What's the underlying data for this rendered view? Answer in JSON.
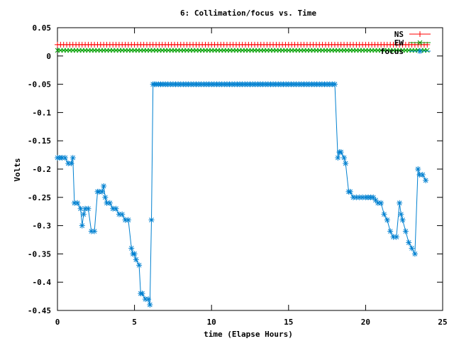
{
  "chart_data": {
    "type": "line",
    "title": "6: Collimation/focus vs. Time",
    "xlabel": "time (Elapse Hours)",
    "ylabel": "Volts",
    "xlim": [
      0,
      25
    ],
    "ylim": [
      -0.45,
      0.05
    ],
    "xticks": [
      "0",
      "5",
      "10",
      "15",
      "20",
      "25"
    ],
    "yticks": [
      "0.05",
      "0",
      "-0.05",
      "-0.1",
      "-0.15",
      "-0.2",
      "-0.25",
      "-0.3",
      "-0.35",
      "-0.4",
      "-0.45"
    ],
    "legend_position": "top-right",
    "grid": false,
    "series": [
      {
        "name": "NS",
        "color": "#ff0000",
        "marker": "plus",
        "x": [
          0,
          24
        ],
        "y": [
          0.02,
          0.02
        ]
      },
      {
        "name": "EW",
        "color": "#00a000",
        "marker": "x",
        "x": [
          0,
          24
        ],
        "y": [
          0.01,
          0.01
        ]
      },
      {
        "name": "focus",
        "color": "#0080d0",
        "marker": "star",
        "x": [
          0.0,
          0.3,
          0.5,
          0.7,
          0.9,
          1.0,
          1.1,
          1.3,
          1.5,
          1.6,
          1.7,
          1.8,
          2.0,
          2.2,
          2.4,
          2.6,
          2.7,
          2.9,
          3.0,
          3.1,
          3.2,
          3.4,
          3.6,
          3.8,
          4.0,
          4.2,
          4.4,
          4.6,
          4.8,
          4.9,
          5.0,
          5.1,
          5.3,
          5.4,
          5.5,
          5.7,
          5.9,
          6.0,
          6.1,
          6.2,
          6.3,
          6.4,
          7.0,
          8.0,
          9.0,
          10.0,
          11.0,
          12.0,
          13.0,
          14.0,
          15.0,
          16.0,
          17.0,
          18.0,
          18.2,
          18.3,
          18.4,
          18.6,
          18.7,
          18.9,
          19.0,
          19.2,
          19.4,
          19.6,
          20.0,
          20.5,
          20.8,
          21.0,
          21.2,
          21.4,
          21.6,
          21.8,
          22.0,
          22.2,
          22.3,
          22.4,
          22.6,
          22.8,
          23.0,
          23.2,
          23.4,
          23.5,
          23.7,
          23.9
        ],
        "y": [
          -0.18,
          -0.18,
          -0.18,
          -0.19,
          -0.19,
          -0.18,
          -0.26,
          -0.26,
          -0.27,
          -0.3,
          -0.28,
          -0.27,
          -0.27,
          -0.31,
          -0.31,
          -0.24,
          -0.24,
          -0.24,
          -0.23,
          -0.25,
          -0.26,
          -0.26,
          -0.27,
          -0.27,
          -0.28,
          -0.28,
          -0.29,
          -0.29,
          -0.34,
          -0.35,
          -0.35,
          -0.36,
          -0.37,
          -0.42,
          -0.42,
          -0.43,
          -0.43,
          -0.44,
          -0.29,
          -0.05,
          -0.05,
          -0.05,
          -0.05,
          -0.05,
          -0.05,
          -0.05,
          -0.05,
          -0.05,
          -0.05,
          -0.05,
          -0.05,
          -0.05,
          -0.05,
          -0.05,
          -0.18,
          -0.17,
          -0.17,
          -0.18,
          -0.19,
          -0.24,
          -0.24,
          -0.25,
          -0.25,
          -0.25,
          -0.25,
          -0.25,
          -0.26,
          -0.26,
          -0.28,
          -0.29,
          -0.31,
          -0.32,
          -0.32,
          -0.26,
          -0.28,
          -0.29,
          -0.31,
          -0.33,
          -0.34,
          -0.35,
          -0.2,
          -0.21,
          -0.21,
          -0.22
        ]
      }
    ]
  }
}
